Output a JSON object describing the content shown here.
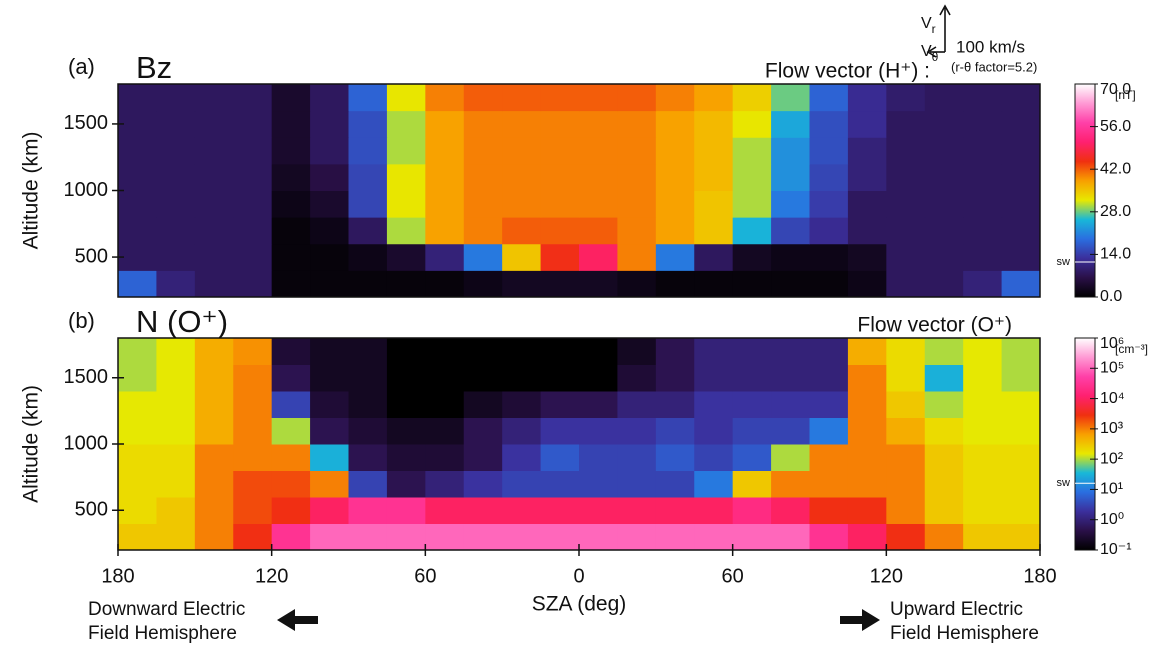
{
  "chart_data": [
    {
      "type": "heatmap",
      "panel_label": "(a)",
      "title": "Bz",
      "annotation": "Flow vector (H⁺) :",
      "ylabel": "Altitude (km)",
      "vector_key": {
        "components": [
          {
            "symbol": "V",
            "sub": "r"
          },
          {
            "symbol": "V",
            "sub": "θ"
          }
        ],
        "label": "100 km/s",
        "note": "(r-θ factor=5.2)"
      },
      "xlim": [
        -180,
        180
      ],
      "ylim": [
        200,
        1800
      ],
      "yticks": [
        500,
        1000,
        1500
      ],
      "xbins": [
        -180,
        -165,
        -150,
        -135,
        -120,
        -105,
        -90,
        -75,
        -60,
        -45,
        -30,
        -15,
        0,
        15,
        30,
        45,
        60,
        75,
        90,
        105,
        120,
        135,
        150,
        165,
        180
      ],
      "ybins": [
        200,
        400,
        600,
        800,
        1000,
        1200,
        1400,
        1600,
        1800
      ],
      "z": [
        [
          18,
          10,
          8,
          8,
          1,
          1,
          1,
          1,
          1,
          2,
          3,
          3,
          3,
          2,
          1,
          1,
          1,
          1,
          1,
          2,
          8,
          8,
          10,
          18
        ],
        [
          8,
          8,
          8,
          8,
          1,
          1,
          2,
          4,
          10,
          20,
          35,
          45,
          50,
          40,
          20,
          8,
          3,
          2,
          2,
          3,
          8,
          8,
          8,
          8
        ],
        [
          8,
          8,
          8,
          8,
          1,
          2,
          8,
          30,
          38,
          40,
          42,
          42,
          42,
          40,
          38,
          35,
          25,
          15,
          12,
          8,
          8,
          8,
          8,
          8
        ],
        [
          8,
          8,
          8,
          8,
          2,
          4,
          15,
          32,
          38,
          40,
          40,
          40,
          40,
          40,
          38,
          35,
          30,
          20,
          14,
          8,
          8,
          8,
          8,
          8
        ],
        [
          8,
          8,
          8,
          8,
          3,
          6,
          15,
          32,
          38,
          40,
          40,
          40,
          40,
          40,
          38,
          36,
          30,
          22,
          15,
          10,
          8,
          8,
          8,
          8
        ],
        [
          8,
          8,
          8,
          8,
          4,
          8,
          16,
          30,
          38,
          40,
          40,
          40,
          40,
          40,
          38,
          36,
          30,
          22,
          16,
          10,
          8,
          8,
          8,
          8
        ],
        [
          8,
          8,
          8,
          8,
          4,
          8,
          16,
          30,
          38,
          40,
          40,
          40,
          40,
          40,
          38,
          36,
          32,
          24,
          16,
          12,
          8,
          8,
          8,
          8
        ],
        [
          8,
          8,
          8,
          8,
          4,
          8,
          18,
          32,
          40,
          42,
          42,
          42,
          42,
          42,
          40,
          38,
          34,
          28,
          18,
          12,
          9,
          8,
          8,
          8
        ]
      ],
      "colorbar": {
        "unit": "[nT]",
        "log": false,
        "lim": [
          0,
          70
        ],
        "ticks": [
          {
            "value": 0,
            "label": "0.0"
          },
          {
            "value": 14,
            "label": "14.0"
          },
          {
            "value": 28,
            "label": "28.0"
          },
          {
            "value": 42,
            "label": "42.0"
          },
          {
            "value": 56,
            "label": "56.0"
          },
          {
            "value": 70,
            "label": "70.0"
          }
        ],
        "marker": {
          "value": 11.5,
          "label": "sw"
        }
      },
      "colormap": [
        "#000000",
        "#2a1048",
        "#3b2f9c",
        "#2a6ee0",
        "#18b8d8",
        "#e8e800",
        "#f8a000",
        "#f03010",
        "#ff2070",
        "#ff40a8",
        "#ff9ad4",
        "#ffffff"
      ]
    },
    {
      "type": "heatmap",
      "panel_label": "(b)",
      "title": "N (O⁺)",
      "annotation": "Flow vector (O⁺)",
      "ylabel": "Altitude (km)",
      "xlabel": "SZA (deg)",
      "hemispheres": [
        [
          "Downward Electric",
          "Field Hemisphere"
        ],
        [
          "Upward Electric",
          "Field Hemisphere"
        ]
      ],
      "xlim": [
        -180,
        180
      ],
      "ylim": [
        200,
        1800
      ],
      "yticks": [
        500,
        1000,
        1500
      ],
      "xticks": [
        {
          "value": -180,
          "label": "180"
        },
        {
          "value": -120,
          "label": "120"
        },
        {
          "value": -60,
          "label": "60"
        },
        0,
        60,
        120,
        180
      ],
      "xbins": [
        -180,
        -165,
        -150,
        -135,
        -120,
        -105,
        -90,
        -75,
        -60,
        -45,
        -30,
        -15,
        0,
        15,
        30,
        45,
        60,
        75,
        90,
        105,
        120,
        135,
        150,
        165,
        180
      ],
      "ybins": [
        200,
        400,
        600,
        800,
        1000,
        1200,
        1400,
        1600,
        1800
      ],
      "z": [
        [
          300,
          300,
          1000,
          3000,
          30000,
          100000,
          100000,
          100000,
          100000,
          100000,
          100000,
          100000,
          100000,
          100000,
          100000,
          100000,
          100000,
          100000,
          30000,
          10000,
          3000,
          1000,
          300,
          300
        ],
        [
          200,
          300,
          1000,
          2000,
          3000,
          10000,
          30000,
          30000,
          10000,
          10000,
          10000,
          10000,
          10000,
          10000,
          10000,
          10000,
          20000,
          10000,
          3000,
          3000,
          1000,
          300,
          200,
          200
        ],
        [
          200,
          200,
          1000,
          2000,
          2000,
          1000,
          3,
          0.5,
          1,
          2,
          3,
          3,
          3,
          3,
          3,
          10,
          300,
          1000,
          1000,
          1000,
          1000,
          300,
          200,
          200
        ],
        [
          200,
          200,
          1000,
          1000,
          1000,
          30,
          0.5,
          0.3,
          0.3,
          0.5,
          2,
          5,
          3,
          3,
          5,
          3,
          5,
          100,
          1000,
          1000,
          1000,
          300,
          200,
          200
        ],
        [
          150,
          150,
          500,
          1000,
          100,
          0.5,
          0.3,
          0.2,
          0.2,
          0.5,
          1,
          2,
          2,
          2,
          3,
          2,
          3,
          3,
          10,
          1000,
          500,
          200,
          150,
          150
        ],
        [
          150,
          150,
          500,
          1000,
          3,
          0.3,
          0.2,
          0.1,
          0.1,
          0.2,
          0.3,
          0.5,
          0.5,
          1,
          1,
          2,
          2,
          2,
          2,
          1000,
          300,
          100,
          150,
          150
        ],
        [
          100,
          150,
          500,
          1000,
          0.5,
          0.2,
          0.2,
          0.1,
          0.1,
          0.1,
          0.1,
          0.1,
          0.1,
          0.3,
          0.5,
          1,
          1,
          1,
          1,
          1000,
          200,
          30,
          150,
          100
        ],
        [
          100,
          150,
          500,
          800,
          0.3,
          0.2,
          0.2,
          0.1,
          0.1,
          0.1,
          0.1,
          0.1,
          0.1,
          0.2,
          0.5,
          1,
          1,
          1,
          1,
          500,
          200,
          100,
          150,
          100
        ]
      ],
      "colorbar": {
        "unit": "[cm⁻³]",
        "log": true,
        "lim": [
          0.1,
          1000000
        ],
        "ticks": [
          {
            "value": 0.1,
            "label": "10⁻¹"
          },
          {
            "value": 1,
            "label": "10⁰"
          },
          {
            "value": 10,
            "label": "10¹"
          },
          {
            "value": 100,
            "label": "10²"
          },
          {
            "value": 1000,
            "label": "10³"
          },
          {
            "value": 10000,
            "label": "10⁴"
          },
          {
            "value": 100000,
            "label": "10⁵"
          },
          {
            "value": 1000000,
            "label": "10⁶"
          }
        ],
        "marker": {
          "value": 16,
          "label": "sw"
        }
      },
      "colormap": [
        "#000000",
        "#2a1048",
        "#3b2f9c",
        "#2a6ee0",
        "#18b8d8",
        "#e8e800",
        "#f8a000",
        "#f03010",
        "#ff2070",
        "#ff40a8",
        "#ff9ad4",
        "#ffffff"
      ]
    }
  ]
}
